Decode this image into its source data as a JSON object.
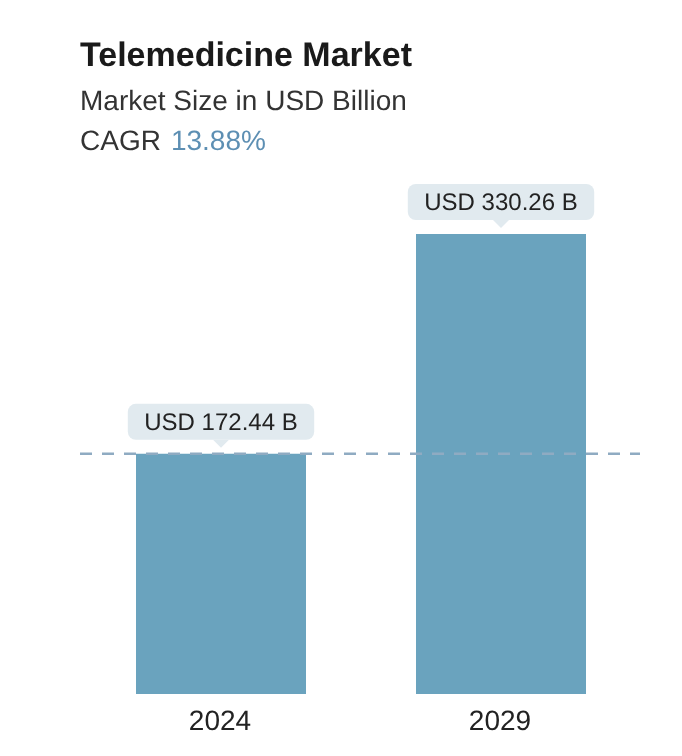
{
  "chart_data": {
    "type": "bar",
    "title": "Telemedicine Market",
    "subtitle": "Market Size in USD Billion",
    "annotations": [
      "CAGR",
      "13.88%"
    ],
    "categories": [
      "2024",
      "2029"
    ],
    "series": [
      {
        "color": "#6aa3be",
        "values": [
          172.44,
          330.26
        ],
        "value_labels": [
          "USD 172.44 B",
          "USD 330.26 B"
        ]
      }
    ],
    "ref_lines": [
      {
        "axis": "y",
        "value": 172.44,
        "color": "#8fabc2",
        "line_style": "dashed"
      }
    ],
    "grid": false,
    "legend": false
  }
}
